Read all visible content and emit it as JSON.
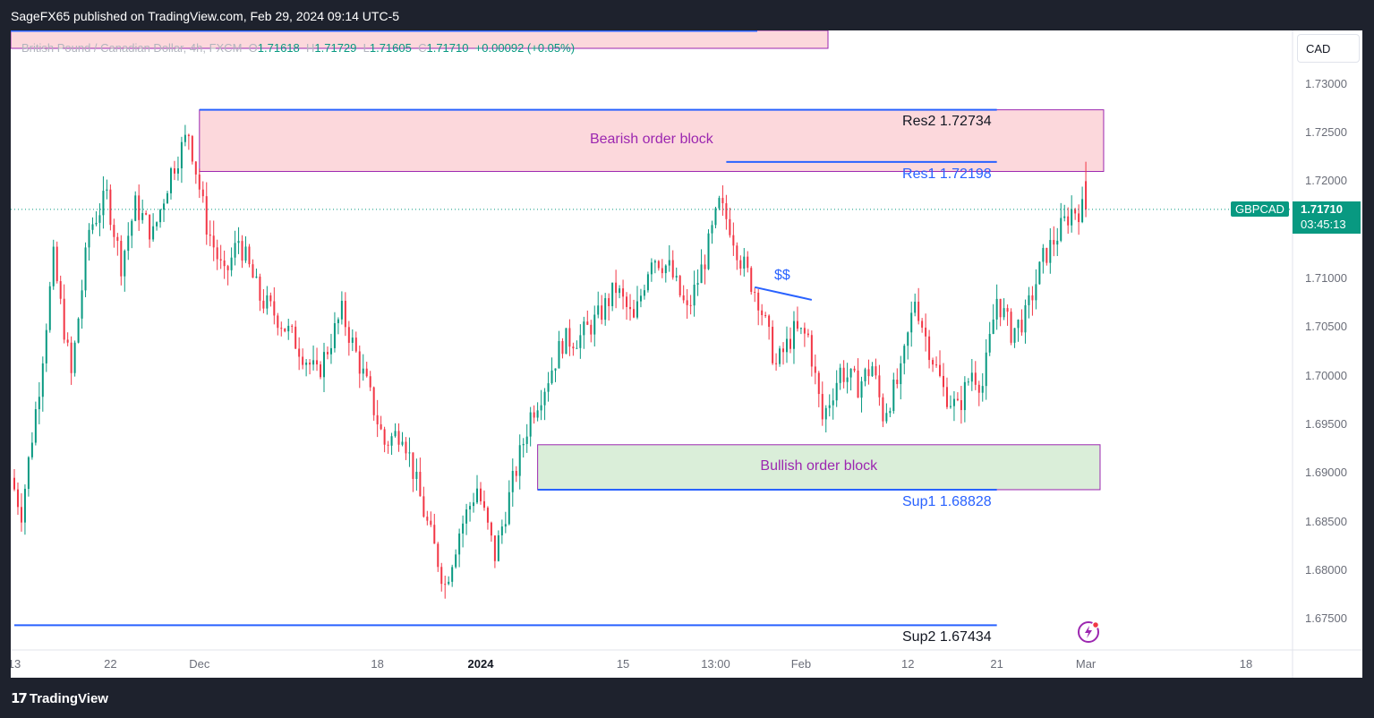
{
  "topbar": {
    "text": "SageFX65 published on TradingView.com, Feb 29, 2024 09:14 UTC-5"
  },
  "footer": {
    "brand": "TradingView",
    "brand_icon": "tradingview-logo-icon"
  },
  "header": {
    "symbol_desc": "British Pound / Canadian Dollar, 4h, FXCM",
    "o_label": "O",
    "o_value": "1.71618",
    "h_label": "H",
    "h_value": "1.71729",
    "l_label": "L",
    "l_value": "1.71605",
    "c_label": "C",
    "c_value": "1.71710",
    "change": "+0.00092 (+0.05%)",
    "currency_button": "CAD"
  },
  "colors": {
    "up": "#089981",
    "down": "#f23645",
    "bear_zone": "#fcd8dc",
    "bull_zone": "#daeed9",
    "zone_border": "#9c27b0",
    "level_line": "#2962ff"
  },
  "chart_data": {
    "type": "candlestick",
    "symbol": "GBPCAD",
    "last_price": "1.71710",
    "countdown": "03:45:13",
    "y_ticks": [
      "1.73000",
      "1.72500",
      "1.72000",
      "1.71000",
      "1.70500",
      "1.70000",
      "1.69500",
      "1.69000",
      "1.68500",
      "1.68000",
      "1.67500"
    ],
    "y_tick_values": [
      1.73,
      1.725,
      1.72,
      1.71,
      1.705,
      1.7,
      1.695,
      1.69,
      1.685,
      1.68,
      1.675
    ],
    "y_range": [
      1.6718,
      1.7355
    ],
    "x_ticks": [
      {
        "label": "13",
        "bar": 0
      },
      {
        "label": "22",
        "bar": 27
      },
      {
        "label": "Dec",
        "bar": 52
      },
      {
        "label": "18",
        "bar": 102
      },
      {
        "label": "2024",
        "bar": 131,
        "bold": true
      },
      {
        "label": "15",
        "bar": 171
      },
      {
        "label": "13:00",
        "bar": 197
      },
      {
        "label": "Feb",
        "bar": 221
      },
      {
        "label": "12",
        "bar": 251
      },
      {
        "label": "21",
        "bar": 276
      },
      {
        "label": "Mar",
        "bar": 301
      },
      {
        "label": "18",
        "bar": 346
      }
    ],
    "zones": [
      {
        "label": "Bearish order block",
        "top": 1.72734,
        "bottom": 1.721,
        "bar_start": 52,
        "bar_end": 306,
        "type": "bearish"
      },
      {
        "label": "Bullish order block",
        "top": 1.6929,
        "bottom": 1.68828,
        "bar_start": 147,
        "bar_end": 305,
        "type": "bullish"
      }
    ],
    "levels": [
      {
        "name": "Res2",
        "value": "1.72734",
        "bar_start": 52,
        "bar_end": 276
      },
      {
        "name": "Res1",
        "value": "1.72198",
        "bar_start": 200,
        "bar_end": 276
      },
      {
        "name": "Sup1",
        "value": "1.68828",
        "bar_start": 147,
        "bar_end": 276
      },
      {
        "name": "Sup2",
        "value": "1.67434",
        "bar_start": 0,
        "bar_end": 276
      }
    ],
    "annotation": {
      "label": "$$",
      "from": {
        "bar": 208,
        "price": 1.7091
      },
      "to": {
        "bar": 224,
        "price": 1.7078
      }
    },
    "anchors": [
      [
        0,
        1.6895
      ],
      [
        3,
        1.686
      ],
      [
        8,
        1.699
      ],
      [
        12,
        1.712
      ],
      [
        17,
        1.7
      ],
      [
        22,
        1.715
      ],
      [
        27,
        1.7185
      ],
      [
        31,
        1.7115
      ],
      [
        35,
        1.7175
      ],
      [
        40,
        1.7145
      ],
      [
        45,
        1.721
      ],
      [
        50,
        1.725
      ],
      [
        55,
        1.7155
      ],
      [
        60,
        1.71
      ],
      [
        64,
        1.714
      ],
      [
        70,
        1.708
      ],
      [
        75,
        1.706
      ],
      [
        80,
        1.7035
      ],
      [
        86,
        1.7
      ],
      [
        93,
        1.7065
      ],
      [
        100,
        1.699
      ],
      [
        105,
        1.693
      ],
      [
        110,
        1.6945
      ],
      [
        116,
        1.686
      ],
      [
        122,
        1.6785
      ],
      [
        126,
        1.684
      ],
      [
        131,
        1.6885
      ],
      [
        136,
        1.6815
      ],
      [
        141,
        1.689
      ],
      [
        146,
        1.696
      ],
      [
        150,
        1.699
      ],
      [
        155,
        1.7035
      ],
      [
        160,
        1.704
      ],
      [
        165,
        1.706
      ],
      [
        170,
        1.709
      ],
      [
        175,
        1.7055
      ],
      [
        180,
        1.7125
      ],
      [
        185,
        1.711
      ],
      [
        190,
        1.7065
      ],
      [
        195,
        1.712
      ],
      [
        199,
        1.7175
      ],
      [
        202,
        1.7155
      ],
      [
        205,
        1.712
      ],
      [
        210,
        1.708
      ],
      [
        215,
        1.701
      ],
      [
        220,
        1.7045
      ],
      [
        224,
        1.704
      ],
      [
        228,
        1.6955
      ],
      [
        233,
        1.7005
      ],
      [
        238,
        1.699
      ],
      [
        242,
        1.701
      ],
      [
        245,
        1.696
      ],
      [
        250,
        1.7
      ],
      [
        254,
        1.708
      ],
      [
        257,
        1.704
      ],
      [
        262,
        1.6985
      ],
      [
        266,
        1.6965
      ],
      [
        270,
        1.7005
      ],
      [
        273,
        1.699
      ],
      [
        277,
        1.708
      ],
      [
        281,
        1.7045
      ],
      [
        285,
        1.706
      ],
      [
        290,
        1.712
      ],
      [
        294,
        1.7145
      ],
      [
        298,
        1.717
      ],
      [
        301,
        1.7171
      ]
    ]
  }
}
